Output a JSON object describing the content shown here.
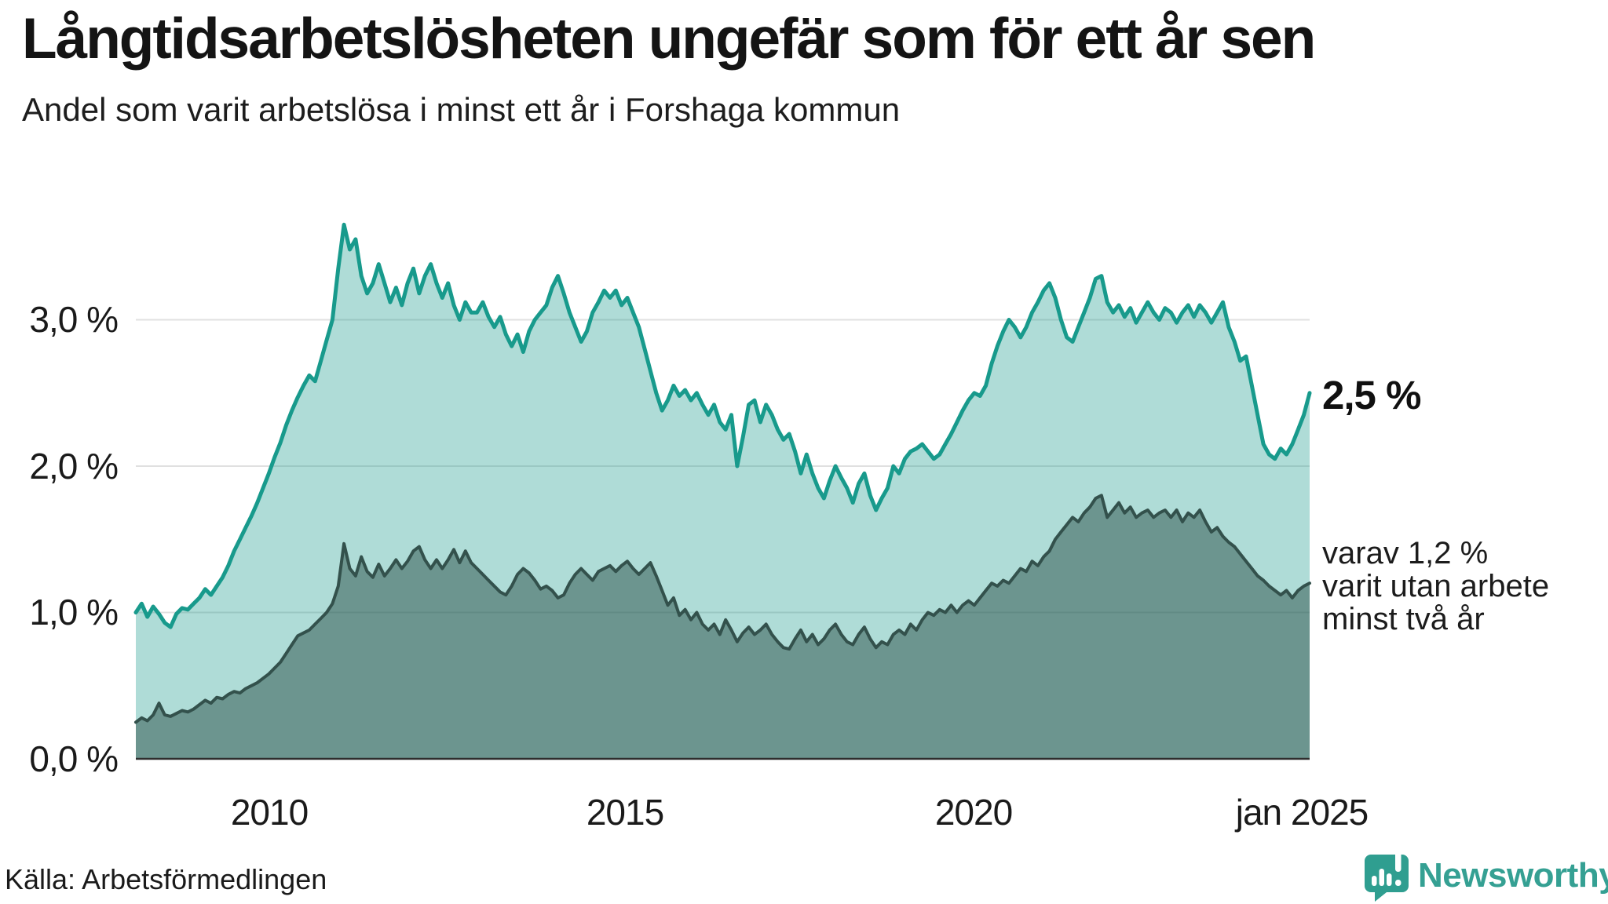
{
  "header": {
    "title": "Långtidsarbetslösheten ungefär som för ett år sen",
    "subtitle": "Andel som varit arbetslösa i minst ett år i Forshaga kommun"
  },
  "footer": {
    "source": "Källa: Arbetsförmedlingen",
    "brand": "Newsworthy",
    "brand_color": "#35a093"
  },
  "right_labels": {
    "series1_end": "2,5 %",
    "series2_lines": [
      "varav 1,2 %",
      "varit utan arbete",
      "minst två år"
    ]
  },
  "chart_data": {
    "type": "area",
    "unit": "%",
    "start_month": "2008-02",
    "end_month": "2025-01",
    "frequency": "monthly",
    "grid": "horizontal",
    "ylim": [
      0,
      3.85
    ],
    "y_gridline_values": [
      1,
      2,
      3
    ],
    "y_tick_labels": [
      "0,0 %",
      "1,0 %",
      "2,0 %",
      "3,0 %"
    ],
    "x_tick_labels": [
      "2010",
      "2015",
      "2020",
      "jan 2025"
    ],
    "gridline_color": "#e0e0e0",
    "axis_color": "#2e2e2e",
    "series": [
      {
        "name": "Andel arbetslösa minst ett år",
        "end_label": "2,5 %",
        "end_value": 2.5,
        "line_color": "#189a8c",
        "fill_color": "rgba(26,154,141,0.35)",
        "line_width": 5,
        "values": [
          1.0,
          1.06,
          0.97,
          1.04,
          0.99,
          0.93,
          0.9,
          0.99,
          1.03,
          1.02,
          1.06,
          1.1,
          1.16,
          1.12,
          1.18,
          1.24,
          1.32,
          1.42,
          1.5,
          1.58,
          1.66,
          1.75,
          1.85,
          1.95,
          2.06,
          2.16,
          2.28,
          2.38,
          2.47,
          2.55,
          2.62,
          2.58,
          2.72,
          2.86,
          3.0,
          3.35,
          3.65,
          3.48,
          3.55,
          3.3,
          3.18,
          3.25,
          3.38,
          3.25,
          3.12,
          3.22,
          3.1,
          3.25,
          3.35,
          3.18,
          3.3,
          3.38,
          3.25,
          3.15,
          3.25,
          3.1,
          3.0,
          3.12,
          3.05,
          3.05,
          3.12,
          3.02,
          2.95,
          3.02,
          2.9,
          2.82,
          2.9,
          2.78,
          2.92,
          3.0,
          3.05,
          3.1,
          3.22,
          3.3,
          3.18,
          3.05,
          2.95,
          2.85,
          2.92,
          3.05,
          3.12,
          3.2,
          3.15,
          3.2,
          3.1,
          3.15,
          3.05,
          2.95,
          2.8,
          2.65,
          2.5,
          2.38,
          2.45,
          2.55,
          2.48,
          2.52,
          2.45,
          2.5,
          2.42,
          2.35,
          2.42,
          2.3,
          2.25,
          2.35,
          2.0,
          2.2,
          2.42,
          2.45,
          2.3,
          2.42,
          2.35,
          2.25,
          2.18,
          2.22,
          2.1,
          1.95,
          2.08,
          1.95,
          1.85,
          1.78,
          1.9,
          2.0,
          1.92,
          1.85,
          1.75,
          1.88,
          1.95,
          1.8,
          1.7,
          1.78,
          1.85,
          2.0,
          1.95,
          2.05,
          2.1,
          2.12,
          2.15,
          2.1,
          2.05,
          2.08,
          2.15,
          2.22,
          2.3,
          2.38,
          2.45,
          2.5,
          2.48,
          2.55,
          2.7,
          2.82,
          2.92,
          3.0,
          2.95,
          2.88,
          2.95,
          3.05,
          3.12,
          3.2,
          3.25,
          3.15,
          3.0,
          2.88,
          2.85,
          2.95,
          3.05,
          3.15,
          3.28,
          3.3,
          3.12,
          3.05,
          3.1,
          3.02,
          3.08,
          2.98,
          3.05,
          3.12,
          3.05,
          3.0,
          3.08,
          3.05,
          2.98,
          3.05,
          3.1,
          3.02,
          3.1,
          3.05,
          2.98,
          3.05,
          3.12,
          2.95,
          2.85,
          2.72,
          2.75,
          2.55,
          2.35,
          2.15,
          2.08,
          2.05,
          2.12,
          2.08,
          2.15,
          2.25,
          2.35,
          2.5
        ]
      },
      {
        "name": "varav utan arbete minst två år",
        "end_label": "varav 1,2 % varit utan arbete minst två år",
        "end_value": 1.2,
        "line_color": "#33514c",
        "fill_color": "rgba(41,77,71,0.50)",
        "line_width": 4,
        "values": [
          0.25,
          0.28,
          0.26,
          0.3,
          0.38,
          0.3,
          0.29,
          0.31,
          0.33,
          0.32,
          0.34,
          0.37,
          0.4,
          0.38,
          0.42,
          0.41,
          0.44,
          0.46,
          0.45,
          0.48,
          0.5,
          0.52,
          0.55,
          0.58,
          0.62,
          0.66,
          0.72,
          0.78,
          0.84,
          0.86,
          0.88,
          0.92,
          0.96,
          1.0,
          1.06,
          1.18,
          1.47,
          1.3,
          1.25,
          1.38,
          1.28,
          1.24,
          1.33,
          1.25,
          1.3,
          1.36,
          1.3,
          1.35,
          1.42,
          1.45,
          1.36,
          1.3,
          1.36,
          1.3,
          1.36,
          1.43,
          1.34,
          1.42,
          1.34,
          1.3,
          1.26,
          1.22,
          1.18,
          1.14,
          1.12,
          1.18,
          1.26,
          1.3,
          1.27,
          1.22,
          1.16,
          1.18,
          1.15,
          1.1,
          1.12,
          1.2,
          1.26,
          1.3,
          1.26,
          1.22,
          1.28,
          1.3,
          1.32,
          1.28,
          1.32,
          1.35,
          1.3,
          1.26,
          1.3,
          1.34,
          1.25,
          1.15,
          1.05,
          1.1,
          0.98,
          1.02,
          0.95,
          1.0,
          0.92,
          0.88,
          0.92,
          0.85,
          0.95,
          0.88,
          0.8,
          0.86,
          0.9,
          0.85,
          0.88,
          0.92,
          0.85,
          0.8,
          0.76,
          0.75,
          0.82,
          0.88,
          0.8,
          0.85,
          0.78,
          0.82,
          0.88,
          0.92,
          0.85,
          0.8,
          0.78,
          0.85,
          0.9,
          0.82,
          0.76,
          0.8,
          0.78,
          0.85,
          0.88,
          0.85,
          0.92,
          0.88,
          0.95,
          1.0,
          0.98,
          1.02,
          1.0,
          1.05,
          1.0,
          1.05,
          1.08,
          1.05,
          1.1,
          1.15,
          1.2,
          1.18,
          1.22,
          1.2,
          1.25,
          1.3,
          1.28,
          1.35,
          1.32,
          1.38,
          1.42,
          1.5,
          1.55,
          1.6,
          1.65,
          1.62,
          1.68,
          1.72,
          1.78,
          1.8,
          1.65,
          1.7,
          1.75,
          1.68,
          1.72,
          1.65,
          1.68,
          1.7,
          1.65,
          1.68,
          1.7,
          1.65,
          1.7,
          1.62,
          1.68,
          1.65,
          1.7,
          1.62,
          1.55,
          1.58,
          1.52,
          1.48,
          1.45,
          1.4,
          1.35,
          1.3,
          1.25,
          1.22,
          1.18,
          1.15,
          1.12,
          1.15,
          1.1,
          1.15,
          1.18,
          1.2
        ]
      }
    ]
  }
}
